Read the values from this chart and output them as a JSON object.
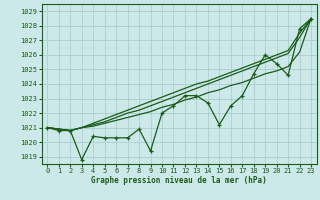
{
  "xlabel": "Graphe pression niveau de la mer (hPa)",
  "bg_color": "#cce8e8",
  "grid_color": "#aacfcf",
  "line_color": "#1a5c1a",
  "ylim": [
    1018.5,
    1029.5
  ],
  "xlim": [
    -0.5,
    23.5
  ],
  "yticks": [
    1019,
    1020,
    1021,
    1022,
    1023,
    1024,
    1025,
    1026,
    1027,
    1028,
    1029
  ],
  "xticks": [
    0,
    1,
    2,
    3,
    4,
    5,
    6,
    7,
    8,
    9,
    10,
    11,
    12,
    13,
    14,
    15,
    16,
    17,
    18,
    19,
    20,
    21,
    22,
    23
  ],
  "smooth_series": [
    [
      1021.0,
      1020.9,
      1020.8,
      1021.0,
      1021.1,
      1021.3,
      1021.5,
      1021.7,
      1021.9,
      1022.1,
      1022.4,
      1022.6,
      1022.9,
      1023.1,
      1023.4,
      1023.6,
      1023.9,
      1024.1,
      1024.4,
      1024.7,
      1024.9,
      1025.2,
      1026.2,
      1028.5
    ],
    [
      1021.0,
      1020.9,
      1020.8,
      1021.0,
      1021.2,
      1021.4,
      1021.7,
      1022.0,
      1022.2,
      1022.5,
      1022.8,
      1023.1,
      1023.4,
      1023.7,
      1024.0,
      1024.3,
      1024.6,
      1024.9,
      1025.2,
      1025.5,
      1025.8,
      1026.1,
      1027.2,
      1028.5
    ],
    [
      1021.0,
      1020.9,
      1020.8,
      1021.0,
      1021.3,
      1021.6,
      1021.9,
      1022.2,
      1022.5,
      1022.8,
      1023.1,
      1023.4,
      1023.7,
      1024.0,
      1024.2,
      1024.5,
      1024.8,
      1025.1,
      1025.4,
      1025.7,
      1026.0,
      1026.3,
      1027.5,
      1028.5
    ]
  ],
  "main_series_x": [
    0,
    1,
    2,
    3,
    4,
    5,
    6,
    7,
    8,
    9,
    10,
    11,
    12,
    13,
    14,
    15,
    16,
    17,
    18,
    19,
    20,
    21,
    22,
    23
  ],
  "main_series_y": [
    1021.0,
    1020.8,
    1020.8,
    1018.8,
    1020.4,
    1020.3,
    1020.3,
    1020.3,
    1020.9,
    1019.4,
    1022.0,
    1022.5,
    1023.2,
    1023.2,
    1022.7,
    1021.2,
    1022.5,
    1023.2,
    1024.7,
    1026.0,
    1025.4,
    1024.6,
    1027.8,
    1028.5
  ]
}
